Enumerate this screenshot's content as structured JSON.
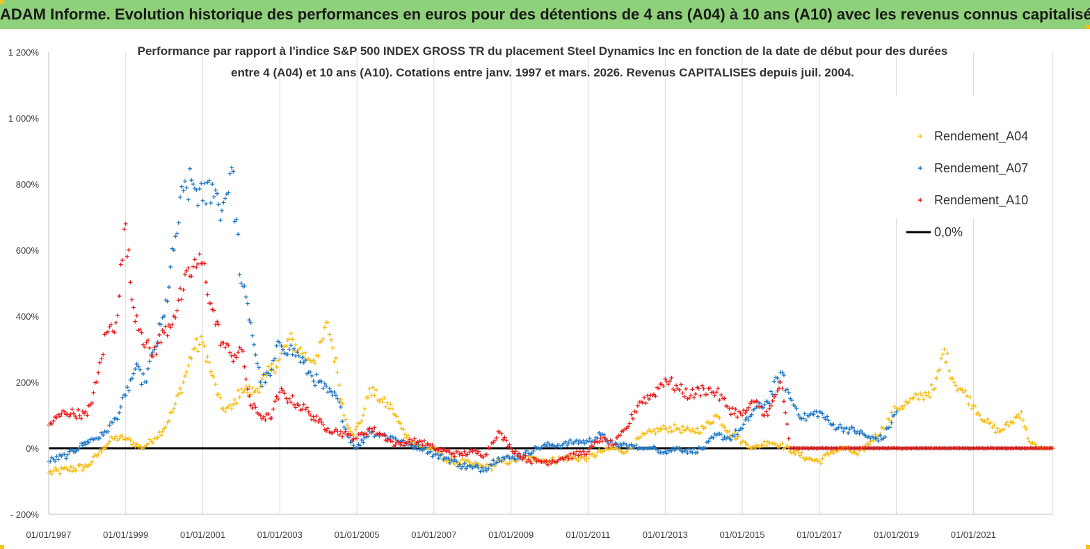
{
  "banner": {
    "title": "ADAM Informe. Evolution historique des performances en euros pour des détentions de 4 ans (A04) à 10 ans (A10) avec les revenus connus capitalisés"
  },
  "chart_data": {
    "type": "scatter",
    "title_lines": [
      "Performance par rapport à l'indice S&P 500 INDEX GROSS TR  du placement Steel Dynamics Inc en fonction de la date de début pour des durées",
      "entre 4 (A04) et 10 ans (A10).  Cotations entre janv. 1997 et mars. 2026. Revenus CAPITALISES depuis juil. 2004."
    ],
    "xlabel": "",
    "ylabel": "",
    "x_range": [
      "1997-01-01",
      "2023-01-20"
    ],
    "ylim": [
      -200,
      1200
    ],
    "y_ticks": [
      -200,
      0,
      200,
      400,
      600,
      800,
      1000,
      1200
    ],
    "y_tick_labels": [
      "- 200%",
      "0%",
      "200%",
      "400%",
      "600%",
      "800%",
      "1 000%",
      "1 200%"
    ],
    "x_tick_labels": [
      "01/01/1997",
      "01/01/1999",
      "01/01/2001",
      "01/01/2003",
      "01/01/2005",
      "01/01/2007",
      "01/01/2009",
      "01/01/2011",
      "01/01/2013",
      "01/01/2015",
      "01/01/2017",
      "01/01/2019",
      "01/01/2021"
    ],
    "grid": "vertical",
    "legend_position": "top-right",
    "colors": {
      "A04": "#f5be14",
      "A07": "#1f77c4",
      "A10": "#e81b1b",
      "zero": "#000000"
    },
    "series": [
      {
        "name": "Rendement_A04",
        "color": "#f5be14",
        "points": [
          [
            "1997-01-01",
            -75
          ],
          [
            "1997-07-01",
            -65
          ],
          [
            "1998-01-01",
            -55
          ],
          [
            "1998-06-01",
            0
          ],
          [
            "1998-09-01",
            30
          ],
          [
            "1999-01-01",
            30
          ],
          [
            "1999-06-01",
            0
          ],
          [
            "1999-10-01",
            30
          ],
          [
            "2000-01-01",
            60
          ],
          [
            "2000-04-01",
            120
          ],
          [
            "2000-07-01",
            200
          ],
          [
            "2000-10-01",
            300
          ],
          [
            "2001-01-01",
            320
          ],
          [
            "2001-04-01",
            220
          ],
          [
            "2001-07-01",
            120
          ],
          [
            "2001-10-01",
            120
          ],
          [
            "2002-01-01",
            180
          ],
          [
            "2002-05-01",
            170
          ],
          [
            "2002-09-01",
            220
          ],
          [
            "2003-01-01",
            270
          ],
          [
            "2003-04-01",
            330
          ],
          [
            "2003-07-01",
            300
          ],
          [
            "2003-10-01",
            270
          ],
          [
            "2004-01-01",
            280
          ],
          [
            "2004-04-01",
            380
          ],
          [
            "2004-07-01",
            230
          ],
          [
            "2004-09-01",
            100
          ],
          [
            "2004-12-01",
            40
          ],
          [
            "2005-03-01",
            100
          ],
          [
            "2005-05-01",
            180
          ],
          [
            "2005-09-01",
            140
          ],
          [
            "2005-12-01",
            120
          ],
          [
            "2006-03-01",
            60
          ],
          [
            "2006-06-01",
            20
          ],
          [
            "2006-10-01",
            0
          ],
          [
            "2007-01-01",
            0
          ],
          [
            "2007-04-01",
            -30
          ],
          [
            "2007-08-01",
            -40
          ],
          [
            "2008-01-01",
            -50
          ],
          [
            "2008-06-01",
            -60
          ],
          [
            "2008-10-01",
            -40
          ],
          [
            "2009-01-01",
            -40
          ],
          [
            "2009-05-01",
            -30
          ],
          [
            "2009-09-01",
            -30
          ],
          [
            "2010-01-01",
            -40
          ],
          [
            "2010-05-01",
            -30
          ],
          [
            "2010-09-01",
            -30
          ],
          [
            "2011-01-01",
            -30
          ],
          [
            "2011-05-01",
            -10
          ],
          [
            "2011-09-01",
            0
          ],
          [
            "2012-01-01",
            -10
          ],
          [
            "2012-05-01",
            30
          ],
          [
            "2012-09-01",
            50
          ],
          [
            "2013-01-01",
            60
          ],
          [
            "2013-05-01",
            60
          ],
          [
            "2013-09-01",
            50
          ],
          [
            "2014-01-01",
            60
          ],
          [
            "2014-05-01",
            100
          ],
          [
            "2014-09-01",
            50
          ],
          [
            "2015-01-01",
            20
          ],
          [
            "2015-05-01",
            0
          ],
          [
            "2015-09-01",
            20
          ],
          [
            "2016-01-01",
            10
          ],
          [
            "2016-05-01",
            -10
          ],
          [
            "2016-09-01",
            -30
          ],
          [
            "2017-01-01",
            -40
          ],
          [
            "2017-05-01",
            -10
          ],
          [
            "2017-09-01",
            0
          ],
          [
            "2018-01-01",
            -20
          ],
          [
            "2018-05-01",
            20
          ],
          [
            "2018-09-01",
            60
          ],
          [
            "2019-01-01",
            120
          ],
          [
            "2019-05-01",
            140
          ],
          [
            "2019-09-01",
            160
          ],
          [
            "2020-01-01",
            180
          ],
          [
            "2020-04-01",
            300
          ],
          [
            "2020-07-01",
            200
          ],
          [
            "2020-10-01",
            170
          ],
          [
            "2021-01-01",
            130
          ],
          [
            "2021-05-01",
            80
          ],
          [
            "2021-09-01",
            50
          ],
          [
            "2022-01-01",
            80
          ],
          [
            "2022-04-01",
            110
          ],
          [
            "2022-06-01",
            30
          ],
          [
            "2022-09-01",
            0
          ],
          [
            "2023-01-20",
            0
          ]
        ]
      },
      {
        "name": "Rendement_A07",
        "color": "#1f77c4",
        "points": [
          [
            "1997-01-01",
            -40
          ],
          [
            "1997-07-01",
            -20
          ],
          [
            "1998-01-01",
            20
          ],
          [
            "1998-06-01",
            40
          ],
          [
            "1998-10-01",
            90
          ],
          [
            "1999-01-01",
            160
          ],
          [
            "1999-04-01",
            240
          ],
          [
            "1999-07-01",
            200
          ],
          [
            "1999-10-01",
            300
          ],
          [
            "2000-01-01",
            400
          ],
          [
            "2000-04-01",
            600
          ],
          [
            "2000-07-01",
            780
          ],
          [
            "2000-10-01",
            800
          ],
          [
            "2001-01-01",
            750
          ],
          [
            "2001-04-01",
            800
          ],
          [
            "2001-07-01",
            720
          ],
          [
            "2001-10-01",
            850
          ],
          [
            "2002-01-01",
            500
          ],
          [
            "2002-04-01",
            380
          ],
          [
            "2002-07-01",
            200
          ],
          [
            "2002-10-01",
            220
          ],
          [
            "2003-01-01",
            320
          ],
          [
            "2003-04-01",
            300
          ],
          [
            "2003-07-01",
            280
          ],
          [
            "2003-10-01",
            230
          ],
          [
            "2004-01-01",
            200
          ],
          [
            "2004-04-01",
            170
          ],
          [
            "2004-07-01",
            150
          ],
          [
            "2004-10-01",
            40
          ],
          [
            "2005-01-01",
            0
          ],
          [
            "2005-05-01",
            50
          ],
          [
            "2005-09-01",
            40
          ],
          [
            "2006-01-01",
            30
          ],
          [
            "2006-05-01",
            10
          ],
          [
            "2006-10-01",
            0
          ],
          [
            "2007-01-01",
            -20
          ],
          [
            "2007-05-01",
            -30
          ],
          [
            "2007-09-01",
            -50
          ],
          [
            "2008-01-01",
            -60
          ],
          [
            "2008-05-01",
            -60
          ],
          [
            "2008-09-01",
            -30
          ],
          [
            "2009-01-01",
            -30
          ],
          [
            "2009-05-01",
            -20
          ],
          [
            "2009-09-01",
            0
          ],
          [
            "2010-01-01",
            10
          ],
          [
            "2010-05-01",
            10
          ],
          [
            "2010-09-01",
            20
          ],
          [
            "2011-01-01",
            20
          ],
          [
            "2011-05-01",
            40
          ],
          [
            "2011-09-01",
            10
          ],
          [
            "2012-01-01",
            10
          ],
          [
            "2012-05-01",
            0
          ],
          [
            "2012-09-01",
            0
          ],
          [
            "2013-01-01",
            -10
          ],
          [
            "2013-05-01",
            0
          ],
          [
            "2013-09-01",
            -10
          ],
          [
            "2014-01-01",
            0
          ],
          [
            "2014-05-01",
            40
          ],
          [
            "2014-09-01",
            30
          ],
          [
            "2015-01-01",
            60
          ],
          [
            "2015-05-01",
            120
          ],
          [
            "2015-09-01",
            140
          ],
          [
            "2016-01-01",
            230
          ],
          [
            "2016-04-01",
            150
          ],
          [
            "2016-08-01",
            90
          ],
          [
            "2017-01-01",
            110
          ],
          [
            "2017-05-01",
            70
          ],
          [
            "2017-09-01",
            60
          ],
          [
            "2018-01-01",
            50
          ],
          [
            "2018-05-01",
            30
          ],
          [
            "2018-09-01",
            30
          ],
          [
            "2019-01-01",
            110
          ]
        ]
      },
      {
        "name": "Rendement_A10",
        "color": "#e81b1b",
        "points": [
          [
            "1997-01-01",
            70
          ],
          [
            "1997-06-01",
            110
          ],
          [
            "1998-01-01",
            100
          ],
          [
            "1998-04-01",
            200
          ],
          [
            "1998-07-01",
            350
          ],
          [
            "1998-10-01",
            380
          ],
          [
            "1999-01-01",
            680
          ],
          [
            "1999-03-01",
            450
          ],
          [
            "1999-06-01",
            350
          ],
          [
            "1999-09-01",
            280
          ],
          [
            "2000-01-01",
            350
          ],
          [
            "2000-04-01",
            400
          ],
          [
            "2000-07-01",
            480
          ],
          [
            "2000-10-01",
            550
          ],
          [
            "2001-01-01",
            560
          ],
          [
            "2001-04-01",
            420
          ],
          [
            "2001-07-01",
            320
          ],
          [
            "2001-10-01",
            280
          ],
          [
            "2002-01-01",
            300
          ],
          [
            "2002-04-01",
            130
          ],
          [
            "2002-07-01",
            100
          ],
          [
            "2002-10-01",
            90
          ],
          [
            "2003-01-01",
            170
          ],
          [
            "2003-04-01",
            150
          ],
          [
            "2003-07-01",
            130
          ],
          [
            "2003-10-01",
            110
          ],
          [
            "2004-01-01",
            80
          ],
          [
            "2004-04-01",
            60
          ],
          [
            "2004-07-01",
            50
          ],
          [
            "2004-10-01",
            40
          ],
          [
            "2005-01-01",
            30
          ],
          [
            "2005-05-01",
            60
          ],
          [
            "2005-09-01",
            40
          ],
          [
            "2006-01-01",
            10
          ],
          [
            "2006-05-01",
            20
          ],
          [
            "2006-09-01",
            20
          ],
          [
            "2007-01-01",
            0
          ],
          [
            "2007-05-01",
            -10
          ],
          [
            "2007-09-01",
            -20
          ],
          [
            "2008-01-01",
            -10
          ],
          [
            "2008-05-01",
            -20
          ],
          [
            "2008-09-01",
            50
          ],
          [
            "2009-01-01",
            0
          ],
          [
            "2009-05-01",
            -30
          ],
          [
            "2009-09-01",
            -40
          ],
          [
            "2010-01-01",
            -40
          ],
          [
            "2010-05-01",
            -30
          ],
          [
            "2010-09-01",
            -20
          ],
          [
            "2011-01-01",
            -10
          ],
          [
            "2011-05-01",
            30
          ],
          [
            "2011-09-01",
            10
          ],
          [
            "2012-01-01",
            60
          ],
          [
            "2012-05-01",
            140
          ],
          [
            "2012-09-01",
            160
          ],
          [
            "2013-01-01",
            210
          ],
          [
            "2013-05-01",
            180
          ],
          [
            "2013-09-01",
            160
          ],
          [
            "2014-01-01",
            180
          ],
          [
            "2014-05-01",
            170
          ],
          [
            "2014-09-01",
            120
          ],
          [
            "2015-01-01",
            100
          ],
          [
            "2015-05-01",
            140
          ],
          [
            "2015-09-01",
            100
          ],
          [
            "2016-01-01",
            200
          ],
          [
            "2016-04-01",
            0
          ],
          [
            "2017-01-01",
            0
          ],
          [
            "2018-01-01",
            0
          ],
          [
            "2019-01-01",
            0
          ],
          [
            "2020-01-01",
            0
          ],
          [
            "2021-01-01",
            0
          ],
          [
            "2022-01-01",
            0
          ],
          [
            "2023-01-20",
            0
          ]
        ]
      },
      {
        "name": "0,0%",
        "color": "#000000",
        "type": "line",
        "y": 0
      }
    ],
    "legend": [
      {
        "label": "Rendement_A04",
        "marker": "cross"
      },
      {
        "label": "Rendement_A07",
        "marker": "cross"
      },
      {
        "label": "Rendement_A10",
        "marker": "cross"
      },
      {
        "label": "0,0%",
        "marker": "line"
      }
    ]
  }
}
